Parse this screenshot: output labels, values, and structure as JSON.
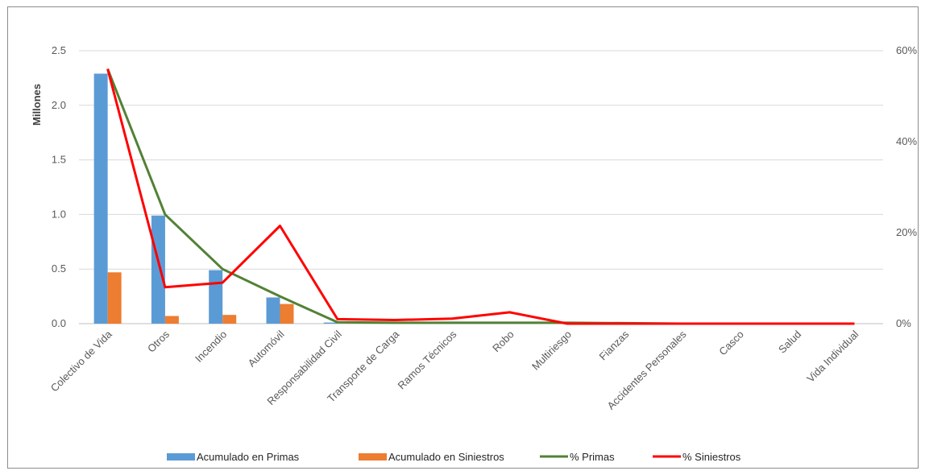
{
  "chart_data": {
    "type": "bar",
    "categories": [
      "Colectivo de Vida",
      "Otros",
      "Incendio",
      "Automóvil",
      "Responsabilidad Civil",
      "Transporte de Carga",
      "Ramos Técnicos",
      "Robo",
      "Multiriesgo",
      "Fianzas",
      "Accidentes Personales",
      "Casco",
      "Salud",
      "Vida Individual"
    ],
    "ylabel": "Millones",
    "ylim": [
      0,
      2.5
    ],
    "y_ticks": [
      "0.0",
      "0.5",
      "1.0",
      "1.5",
      "2.0",
      "2.5"
    ],
    "y2lim": [
      0,
      60
    ],
    "y2_ticks": [
      "0%",
      "20%",
      "40%",
      "60%"
    ],
    "grid": true,
    "legend_position": "bottom",
    "bar_series": [
      {
        "name": "Acumulado en Primas",
        "color": "#5b9bd5",
        "values": [
          2.29,
          0.99,
          0.49,
          0.24,
          0.01,
          0,
          0,
          0,
          0,
          0,
          0,
          0,
          0,
          0
        ]
      },
      {
        "name": "Acumulado en Siniestros",
        "color": "#ed7d31",
        "values": [
          0.47,
          0.07,
          0.08,
          0.18,
          0,
          0,
          0,
          0,
          0,
          0,
          0,
          0,
          0,
          0
        ]
      }
    ],
    "line_series": [
      {
        "name": "% Primas",
        "color": "#538135",
        "axis": "right",
        "values": [
          56.0,
          24.0,
          12.0,
          6.0,
          0.3,
          0.2,
          0.2,
          0.2,
          0.2,
          0.1,
          0,
          0,
          0,
          0
        ]
      },
      {
        "name": "% Siniestros",
        "color": "#ff0000",
        "axis": "right",
        "values": [
          56.0,
          8.0,
          9.0,
          21.5,
          1.0,
          0.8,
          1.1,
          2.5,
          0,
          0,
          0,
          0,
          0,
          0
        ]
      }
    ]
  }
}
